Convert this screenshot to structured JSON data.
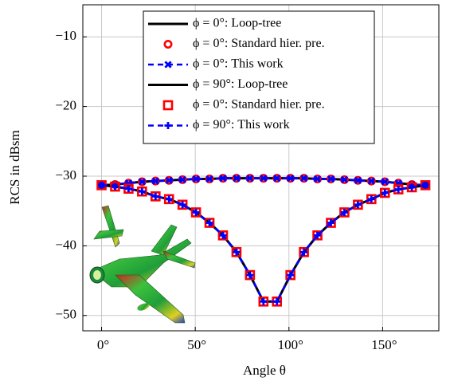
{
  "chart_data": {
    "type": "line",
    "xlabel": "Angle θ",
    "ylabel": "RCS in dBsm",
    "x": [
      0,
      7.2,
      14.4,
      21.6,
      28.8,
      36,
      43.2,
      50.4,
      57.6,
      64.8,
      72,
      79.2,
      86.4,
      93.6,
      100.8,
      108,
      115.2,
      122.4,
      129.6,
      136.8,
      144,
      151.2,
      158.4,
      165.6,
      172.8
    ],
    "series": [
      {
        "name": "ϕ = 0°: Loop-tree",
        "color": "#000000",
        "line": "solid",
        "marker": "none",
        "values": [
          -31.3,
          -31.2,
          -31.0,
          -30.8,
          -30.7,
          -30.6,
          -30.5,
          -30.4,
          -30.4,
          -30.3,
          -30.3,
          -30.3,
          -30.3,
          -30.3,
          -30.3,
          -30.3,
          -30.4,
          -30.4,
          -30.5,
          -30.6,
          -30.7,
          -30.8,
          -31.0,
          -31.2,
          -31.3
        ]
      },
      {
        "name": "ϕ = 0°: Standard hier. pre.",
        "color": "#ff0000",
        "line": "none",
        "marker": "circle",
        "values": [
          -31.3,
          -31.2,
          -31.0,
          -30.8,
          -30.7,
          -30.6,
          -30.5,
          -30.4,
          -30.4,
          -30.3,
          -30.3,
          -30.3,
          -30.3,
          -30.3,
          -30.3,
          -30.3,
          -30.4,
          -30.4,
          -30.5,
          -30.6,
          -30.7,
          -30.8,
          -31.0,
          -31.2,
          -31.3
        ]
      },
      {
        "name": "ϕ = 0°: This work",
        "color": "#0000ff",
        "line": "dashed",
        "marker": "cross",
        "values": [
          -31.3,
          -31.2,
          -31.0,
          -30.8,
          -30.7,
          -30.6,
          -30.5,
          -30.4,
          -30.4,
          -30.3,
          -30.3,
          -30.3,
          -30.3,
          -30.3,
          -30.3,
          -30.3,
          -30.4,
          -30.4,
          -30.5,
          -30.6,
          -30.7,
          -30.8,
          -31.0,
          -31.2,
          -31.3
        ]
      },
      {
        "name": "ϕ = 90°: Loop-tree",
        "color": "#000000",
        "line": "solid",
        "marker": "none",
        "values": [
          -31.3,
          -31.5,
          -31.8,
          -32.2,
          -32.9,
          -33.3,
          -34.1,
          -35.2,
          -36.7,
          -38.5,
          -40.9,
          -44.2,
          -48.0,
          -48.0,
          -44.2,
          -40.9,
          -38.5,
          -36.7,
          -35.2,
          -34.1,
          -33.3,
          -32.4,
          -31.9,
          -31.6,
          -31.3
        ]
      },
      {
        "name": "ϕ = 0°: Standard hier. pre.",
        "color": "#ff0000",
        "line": "none",
        "marker": "square",
        "values": [
          -31.3,
          -31.5,
          -31.8,
          -32.2,
          -32.9,
          -33.3,
          -34.1,
          -35.2,
          -36.7,
          -38.5,
          -40.9,
          -44.2,
          -48.0,
          -48.0,
          -44.2,
          -40.9,
          -38.5,
          -36.7,
          -35.2,
          -34.1,
          -33.3,
          -32.4,
          -31.9,
          -31.6,
          -31.3
        ]
      },
      {
        "name": "ϕ = 90°: This work",
        "color": "#0000ff",
        "line": "dashed",
        "marker": "plus",
        "values": [
          -31.3,
          -31.5,
          -31.8,
          -32.2,
          -32.9,
          -33.3,
          -34.1,
          -35.2,
          -36.7,
          -38.5,
          -40.9,
          -44.2,
          -48.0,
          -48.0,
          -44.2,
          -40.9,
          -38.5,
          -36.7,
          -35.2,
          -34.1,
          -33.3,
          -32.4,
          -31.9,
          -31.6,
          -31.3
        ]
      }
    ],
    "xlim": [
      -10,
      180
    ],
    "ylim": [
      -52.2,
      -5.4
    ],
    "xticks": [
      {
        "value": 0,
        "label": "0°"
      },
      {
        "value": 50,
        "label": "50°"
      },
      {
        "value": 100,
        "label": "100°"
      },
      {
        "value": 150,
        "label": "150°"
      }
    ],
    "yticks": [
      {
        "value": -50,
        "label": "−50"
      },
      {
        "value": -40,
        "label": "−40"
      },
      {
        "value": -30,
        "label": "−30"
      },
      {
        "value": -20,
        "label": "−20"
      },
      {
        "value": -10,
        "label": "−10"
      }
    ],
    "grid": true,
    "legend": "top-center"
  }
}
